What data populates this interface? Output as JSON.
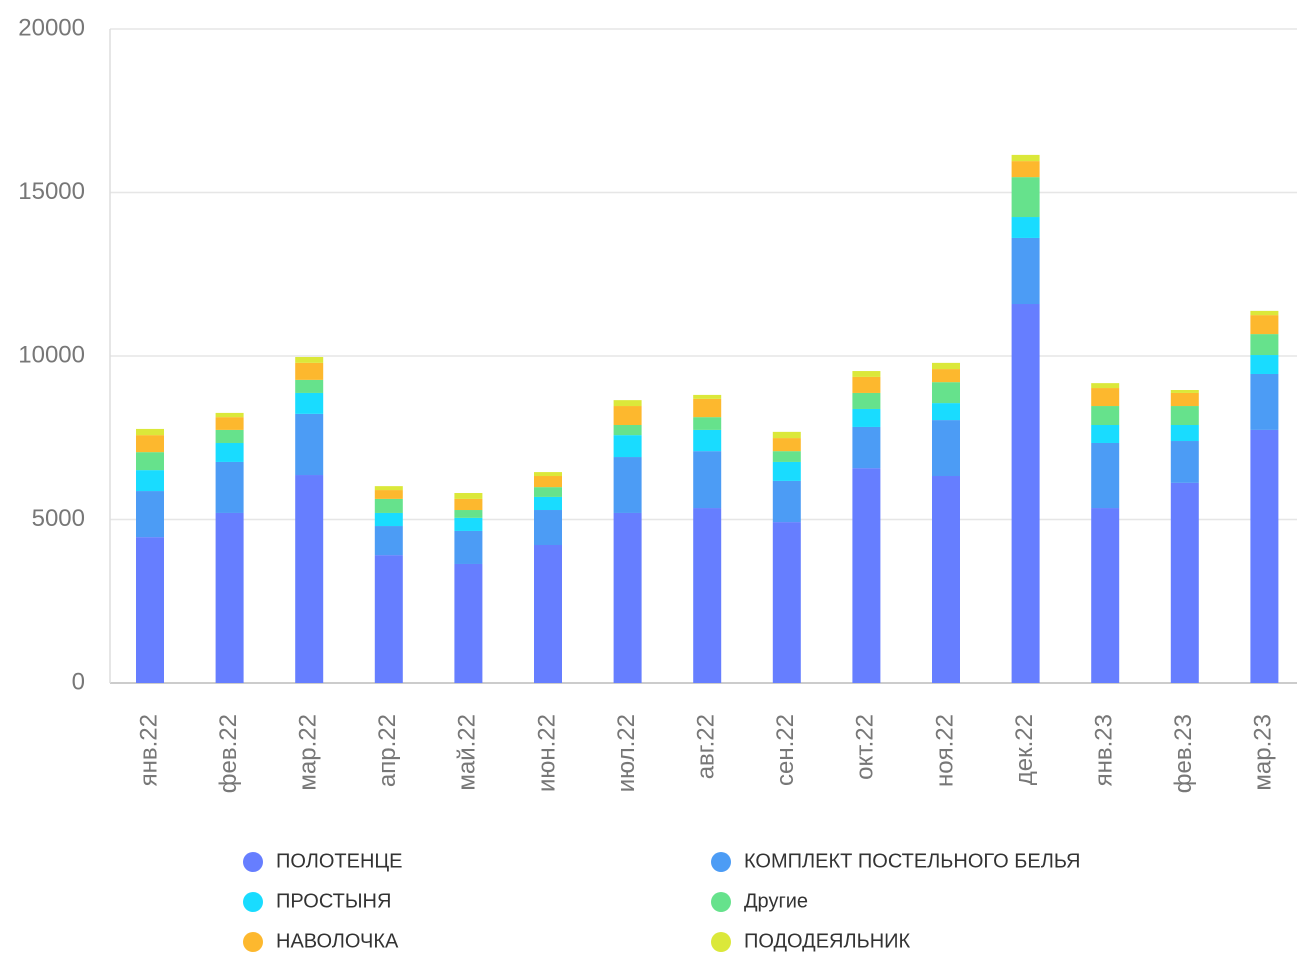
{
  "chart_data": {
    "type": "stacked_bar",
    "categories": [
      "янв.22",
      "фев.22",
      "мар.22",
      "апр.22",
      "май.22",
      "июн.22",
      "июл.22",
      "авг.22",
      "сен.22",
      "окт.22",
      "ноя.22",
      "дек.22",
      "янв.23",
      "фев.23",
      "мар.23"
    ],
    "series": [
      {
        "name": "ПОЛОТЕНЦЕ",
        "color": "#667eff",
        "values": [
          4460,
          5200,
          6360,
          3910,
          3640,
          4220,
          5200,
          5350,
          4920,
          6570,
          6330,
          11590,
          5350,
          6120,
          7740
        ]
      },
      {
        "name": "КОМПЛЕКТ ПОСТЕЛЬНОГО БЕЛЬЯ",
        "color": "#4c9cf5",
        "values": [
          1410,
          1560,
          1870,
          890,
          1010,
          1070,
          1710,
          1740,
          1260,
          1260,
          1710,
          2020,
          1990,
          1280,
          1710
        ]
      },
      {
        "name": "ПРОСТЫНЯ",
        "color": "#19dcff",
        "values": [
          640,
          580,
          640,
          400,
          400,
          400,
          670,
          650,
          580,
          550,
          520,
          640,
          550,
          490,
          580
        ]
      },
      {
        "name": "Другие",
        "color": "#66e28c",
        "values": [
          550,
          400,
          400,
          430,
          240,
          300,
          310,
          390,
          330,
          490,
          640,
          1220,
          580,
          580,
          640
        ]
      },
      {
        "name": "НАВОЛОЧКА",
        "color": "#fdb82e",
        "values": [
          520,
          390,
          520,
          270,
          340,
          340,
          580,
          560,
          400,
          490,
          400,
          490,
          550,
          400,
          580
        ]
      },
      {
        "name": "ПОДОДЕЯЛЬНИК",
        "color": "#dbe83a",
        "values": [
          190,
          130,
          180,
          120,
          180,
          120,
          180,
          120,
          190,
          180,
          190,
          190,
          150,
          90,
          130
        ]
      }
    ],
    "ylim": [
      0,
      20000
    ],
    "yticks": [
      0,
      5000,
      10000,
      15000,
      20000
    ],
    "grid": true
  }
}
